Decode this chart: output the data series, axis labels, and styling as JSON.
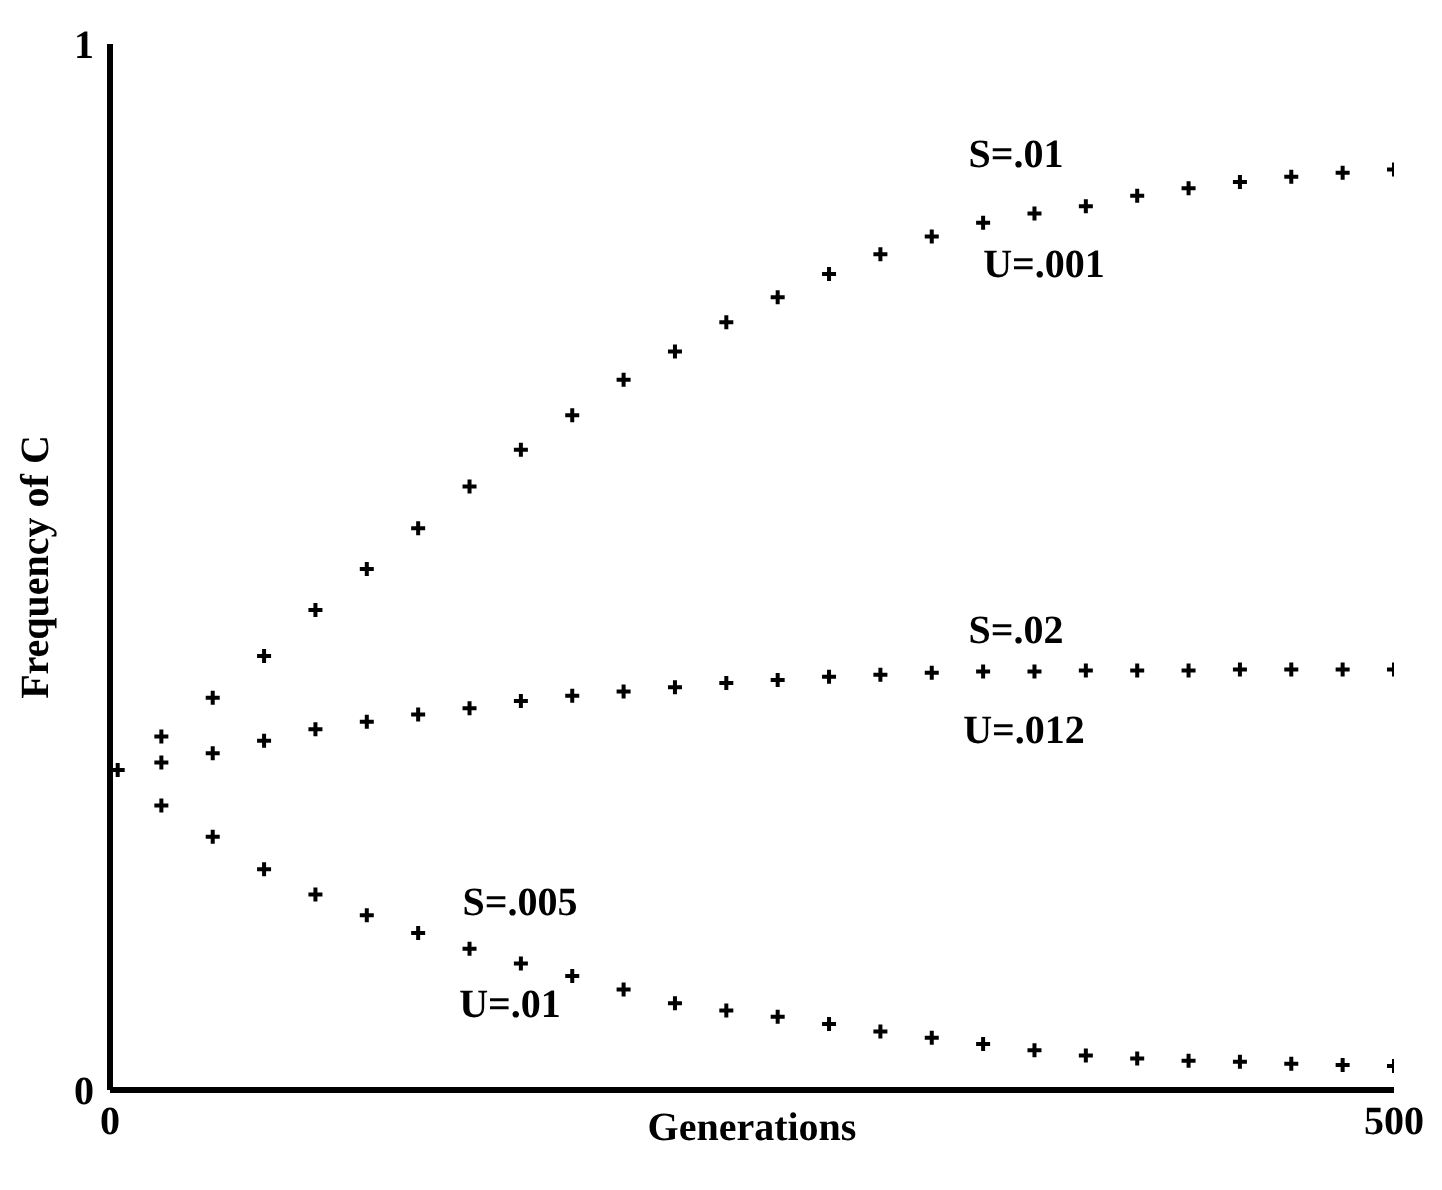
{
  "chart_data": {
    "type": "scatter",
    "xlabel": "Generations",
    "ylabel": "Frequency of C",
    "xlim": [
      0,
      500
    ],
    "xticks": [
      0,
      500
    ],
    "ylim": [
      0,
      1
    ],
    "yticks": [
      0,
      1
    ],
    "marker": "cross",
    "series": [
      {
        "color": "#000000",
        "x": [
          3,
          20,
          40,
          60,
          80,
          100,
          120,
          140,
          160,
          180,
          200,
          220,
          240,
          260,
          280,
          300,
          320,
          340,
          360,
          380,
          400,
          420,
          440,
          460,
          480,
          500
        ],
        "values": [
          0.306,
          0.338,
          0.375,
          0.415,
          0.459,
          0.498,
          0.537,
          0.577,
          0.612,
          0.645,
          0.679,
          0.706,
          0.734,
          0.758,
          0.78,
          0.799,
          0.816,
          0.829,
          0.838,
          0.845,
          0.855,
          0.862,
          0.868,
          0.873,
          0.877,
          0.88
        ]
      },
      {
        "color": "#000000",
        "x": [
          20,
          40,
          60,
          80,
          100,
          120,
          140,
          160,
          180,
          200,
          220,
          240,
          260,
          280,
          300,
          320,
          340,
          360,
          380,
          400,
          420,
          440,
          460,
          480,
          500
        ],
        "values": [
          0.313,
          0.322,
          0.334,
          0.345,
          0.352,
          0.359,
          0.365,
          0.372,
          0.377,
          0.381,
          0.385,
          0.389,
          0.392,
          0.395,
          0.397,
          0.399,
          0.4,
          0.4,
          0.401,
          0.401,
          0.401,
          0.402,
          0.402,
          0.402,
          0.402
        ]
      },
      {
        "color": "#000000",
        "x": [
          20,
          40,
          60,
          80,
          100,
          120,
          140,
          160,
          180,
          200,
          220,
          240,
          260,
          280,
          300,
          320,
          340,
          360,
          380,
          400,
          420,
          440,
          460,
          480,
          500
        ],
        "values": [
          0.272,
          0.242,
          0.211,
          0.187,
          0.167,
          0.15,
          0.135,
          0.121,
          0.109,
          0.096,
          0.083,
          0.076,
          0.07,
          0.063,
          0.056,
          0.05,
          0.044,
          0.038,
          0.033,
          0.03,
          0.028,
          0.027,
          0.025,
          0.024,
          0.023
        ]
      }
    ],
    "annotations": [
      "S=.01",
      "U=.001",
      "S=.02",
      "U=.012",
      "S=.005",
      "U=.01"
    ]
  }
}
